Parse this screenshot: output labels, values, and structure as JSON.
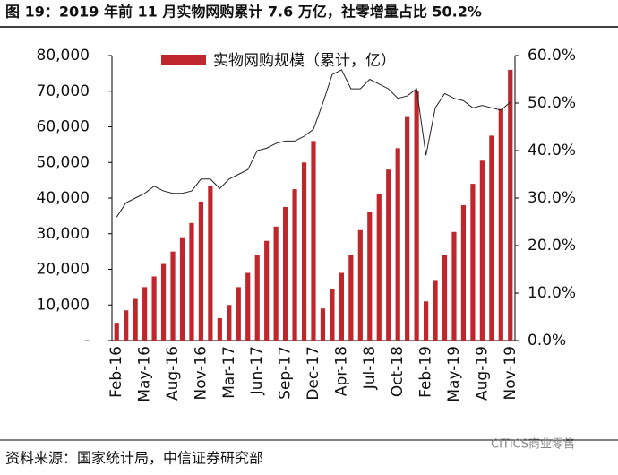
{
  "chart_data": {
    "type": "bar-line",
    "title": "图 19：2019 年前 11 月实物网购累计 7.6 万亿，社零增量占比 50.2%",
    "source": "资料来源：国家统计局，中信证券研究部",
    "watermark": "CITICS商业零售",
    "categories": [
      "Feb-16",
      null,
      null,
      "May-16",
      null,
      null,
      "Aug-16",
      null,
      null,
      "Nov-16",
      null,
      null,
      "Mar-17",
      null,
      null,
      "Jun-17",
      null,
      null,
      "Sep-17",
      null,
      null,
      "Dec-17",
      null,
      null,
      "Apr-18",
      null,
      null,
      "Jul-18",
      null,
      null,
      "Oct-18",
      null,
      null,
      "Feb-19",
      null,
      null,
      "May-19",
      null,
      null,
      "Aug-19",
      null,
      null,
      "Nov-19"
    ],
    "series": [
      {
        "name": "实物网购规模（累计，亿）",
        "type": "bar",
        "color": "#c0272d",
        "values": [
          5000,
          8500,
          11700,
          15000,
          18000,
          21500,
          25000,
          29000,
          33000,
          39000,
          43500,
          6300,
          10000,
          15000,
          19000,
          24000,
          28000,
          32000,
          37500,
          42500,
          50000,
          56000,
          9000,
          14600,
          19000,
          24000,
          31000,
          36000,
          41000,
          48000,
          54000,
          63000,
          70000,
          11000,
          17000,
          24000,
          30500,
          38000,
          44000,
          50500,
          57500,
          65000,
          76000
        ]
      },
      {
        "type": "line",
        "axis": "y2",
        "color": "#222222",
        "values": [
          26,
          29,
          30,
          31,
          32.5,
          31.5,
          31,
          31,
          31.5,
          34,
          34,
          32,
          34,
          35,
          36,
          40,
          40.5,
          41.5,
          42,
          42,
          43,
          44.5,
          50,
          56,
          57,
          53,
          53,
          55,
          54,
          53,
          51,
          51.5,
          53,
          39,
          49,
          52,
          51,
          50.5,
          49,
          49.5,
          49,
          48.5,
          50.2
        ]
      }
    ],
    "ylim": [
      0,
      80000
    ],
    "yticks": [
      {
        "value": 0,
        "label": "-"
      },
      {
        "value": 10000,
        "label": "10,000"
      },
      {
        "value": 20000,
        "label": "20,000"
      },
      {
        "value": 30000,
        "label": "30,000"
      },
      {
        "value": 40000,
        "label": "40,000"
      },
      {
        "value": 50000,
        "label": "50,000"
      },
      {
        "value": 60000,
        "label": "60,000"
      },
      {
        "value": 70000,
        "label": "70,000"
      },
      {
        "value": 80000,
        "label": "80,000"
      }
    ],
    "y2lim": [
      0,
      60
    ],
    "y2ticks": [
      {
        "value": 0,
        "label": "0.0%"
      },
      {
        "value": 10,
        "label": "10.0%"
      },
      {
        "value": 20,
        "label": "20.0%"
      },
      {
        "value": 30,
        "label": "30.0%"
      },
      {
        "value": 40,
        "label": "40.0%"
      },
      {
        "value": 50,
        "label": "50.0%"
      },
      {
        "value": 60,
        "label": "60.0%"
      }
    ],
    "legend": "top-left"
  }
}
